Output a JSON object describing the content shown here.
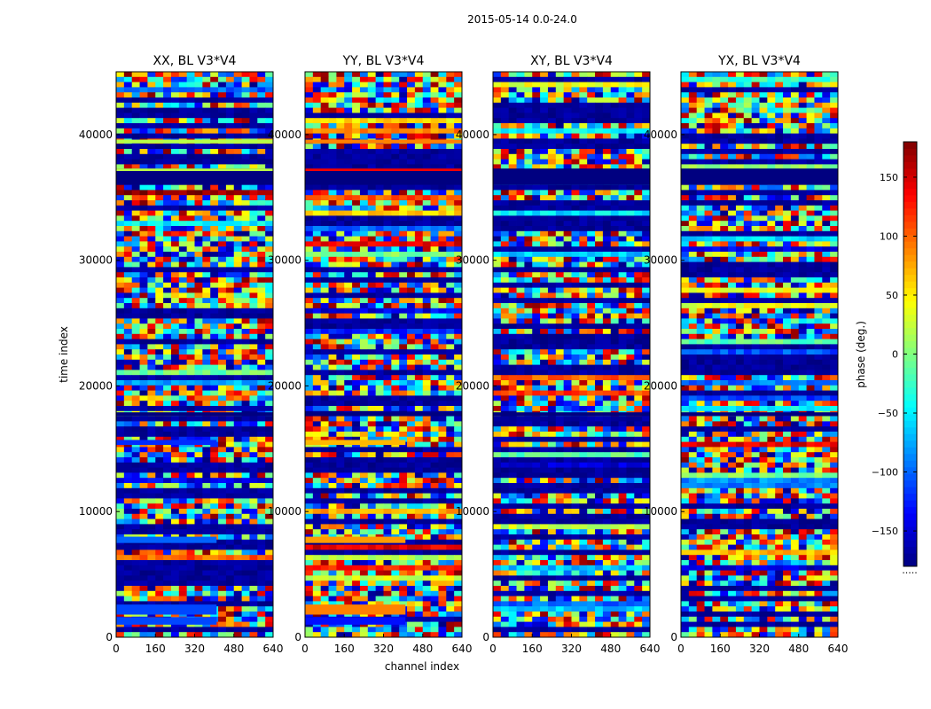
{
  "chart_data": {
    "type": "heatmap",
    "title": "2015-05-14 0.0-24.0",
    "xlabel": "channel index",
    "ylabel": "time index",
    "xlim": [
      0,
      640
    ],
    "ylim": [
      0,
      45000
    ],
    "x_ticks": [
      0,
      160,
      320,
      480,
      640
    ],
    "y_ticks": [
      0,
      10000,
      20000,
      30000,
      40000
    ],
    "colormap": "jet",
    "colorbar": {
      "label": "phase (deg.)",
      "range": [
        -180,
        180
      ],
      "ticks": [
        150,
        100,
        50,
        0,
        -50,
        -100,
        -150
      ],
      "tick_labels": [
        "150",
        "100",
        "50",
        "0",
        "−50",
        "−100",
        "−150"
      ],
      "extra_label": "....."
    },
    "panels": [
      {
        "title": "XX, BL V3*V4"
      },
      {
        "title": "YY, BL V3*V4"
      },
      {
        "title": "XY, BL V3*V4"
      },
      {
        "title": "YX, BL V3*V4"
      }
    ],
    "row_bands": [
      {
        "t0": 36000,
        "t1": 37300,
        "phase": [
          -180,
          -180,
          -180,
          -180
        ]
      },
      {
        "t0": 17600,
        "t1": 17900,
        "phase": [
          -180,
          -180,
          -180,
          -180
        ]
      },
      {
        "t0": 7500,
        "t1": 8000,
        "phase": [
          -100,
          80,
          null,
          null
        ]
      },
      {
        "t0": 15300,
        "t1": 15700,
        "phase": [
          -120,
          70,
          null,
          null
        ]
      },
      {
        "t0": 1800,
        "t1": 2600,
        "phase": [
          -110,
          90,
          null,
          null
        ]
      },
      {
        "t0": 1000,
        "t1": 1600,
        "phase": [
          -110,
          -130,
          null,
          null
        ]
      },
      {
        "t0": 37100,
        "t1": 37300,
        "phase": [
          20,
          140,
          null,
          null
        ]
      },
      {
        "t0": 39300,
        "t1": 39600,
        "phase": [
          20,
          90,
          null,
          null
        ]
      }
    ]
  }
}
